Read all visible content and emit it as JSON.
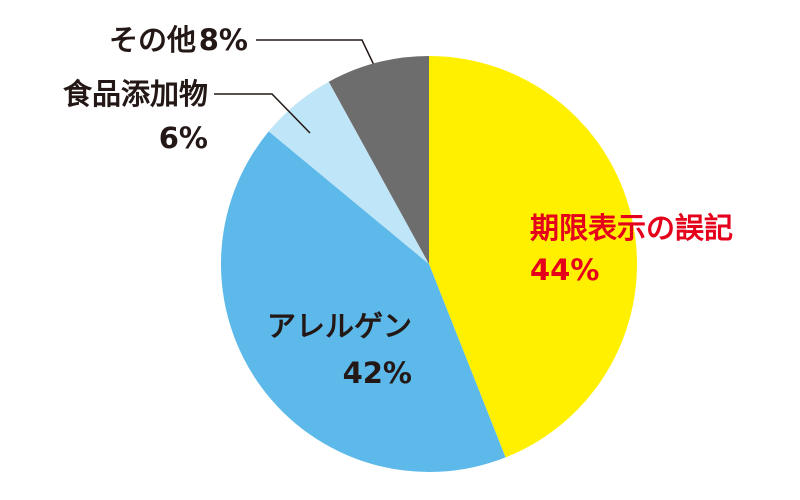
{
  "chart_data": {
    "type": "pie",
    "categories": [
      "期限表示の誤記",
      "アレルゲン",
      "食品添加物",
      "その他"
    ],
    "values": [
      44,
      42,
      6,
      8
    ],
    "value_labels": [
      "44%",
      "42%",
      "6%",
      "8%"
    ],
    "colors": [
      "#fff000",
      "#5db9e9",
      "#bfe5f8",
      "#6e6d6d"
    ],
    "label_colors": [
      "#e5001c",
      "#231815",
      "#231815",
      "#231815"
    ]
  }
}
